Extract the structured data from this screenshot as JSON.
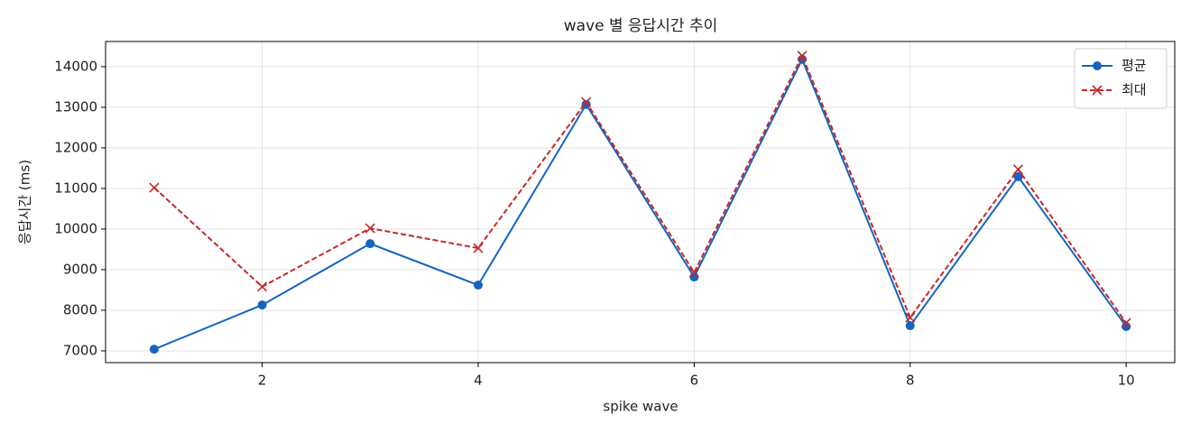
{
  "chart_data": {
    "type": "line",
    "title": "wave 별 응답시간 추이",
    "x_label": "spike wave",
    "y_label": "응답시간 (ms)",
    "x": [
      1,
      2,
      3,
      4,
      5,
      6,
      7,
      8,
      9,
      10
    ],
    "series": [
      {
        "name": "평균",
        "color": "#1565c0",
        "marker": "circle",
        "dash": "solid",
        "values": [
          7040,
          8130,
          9640,
          8620,
          13070,
          8820,
          14180,
          7620,
          11290,
          7600
        ]
      },
      {
        "name": "최대",
        "color": "#c62828",
        "marker": "x",
        "dash": "dashed",
        "values": [
          11020,
          8580,
          10020,
          9530,
          13130,
          8930,
          14270,
          7820,
          11470,
          7690
        ]
      }
    ],
    "xlim": [
      0.55,
      10.45
    ],
    "ylim": [
      6710,
      14620
    ],
    "xticks": [
      2,
      4,
      6,
      8,
      10
    ],
    "yticks": [
      7000,
      8000,
      9000,
      10000,
      11000,
      12000,
      13000,
      14000
    ],
    "grid": true,
    "legend": "upper right"
  }
}
